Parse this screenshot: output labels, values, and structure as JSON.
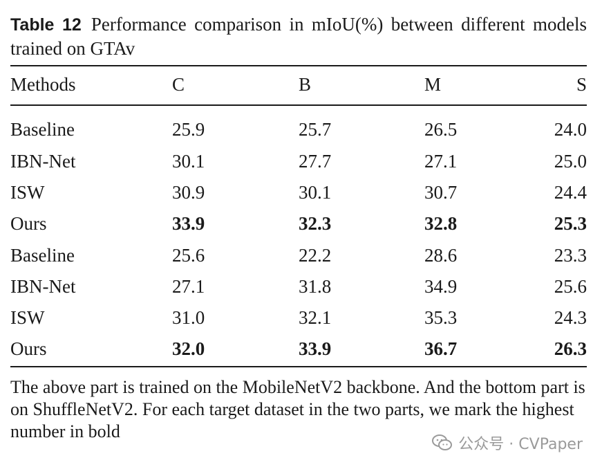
{
  "caption": {
    "label": "Table 12",
    "text": "Performance comparison in mIoU(%) between different models trained on GTAv"
  },
  "table": {
    "headers": [
      "Methods",
      "C",
      "B",
      "M",
      "S"
    ],
    "rows": [
      {
        "method": "Baseline",
        "values": [
          "25.9",
          "25.7",
          "26.5",
          "24.0"
        ],
        "bold": false
      },
      {
        "method": "IBN-Net",
        "values": [
          "30.1",
          "27.7",
          "27.1",
          "25.0"
        ],
        "bold": false
      },
      {
        "method": "ISW",
        "values": [
          "30.9",
          "30.1",
          "30.7",
          "24.4"
        ],
        "bold": false
      },
      {
        "method": "Ours",
        "values": [
          "33.9",
          "32.3",
          "32.8",
          "25.3"
        ],
        "bold": true
      },
      {
        "method": "Baseline",
        "values": [
          "25.6",
          "22.2",
          "28.6",
          "23.3"
        ],
        "bold": false
      },
      {
        "method": "IBN-Net",
        "values": [
          "27.1",
          "31.8",
          "34.9",
          "25.6"
        ],
        "bold": false
      },
      {
        "method": "ISW",
        "values": [
          "31.0",
          "32.1",
          "35.3",
          "24.3"
        ],
        "bold": false
      },
      {
        "method": "Ours",
        "values": [
          "32.0",
          "33.9",
          "36.7",
          "26.3"
        ],
        "bold": true
      }
    ]
  },
  "footnote": "The above part is trained on the MobileNetV2 backbone. And the bottom part is on ShuffleNetV2. For each target dataset in the two parts, we mark the highest number in bold",
  "watermark": {
    "text": "公众号 · CVPaper",
    "icon": "wechat-icon"
  }
}
